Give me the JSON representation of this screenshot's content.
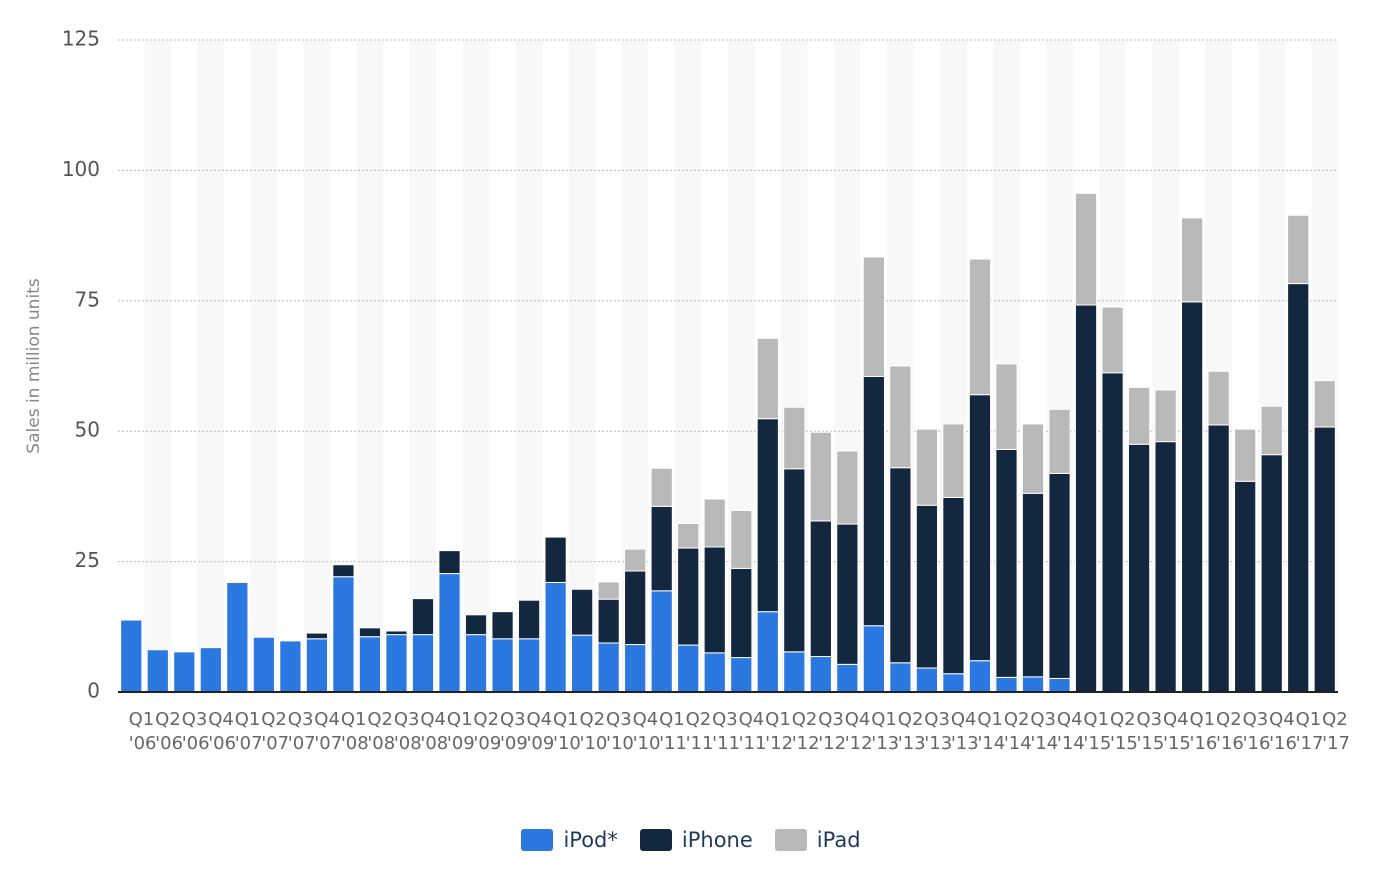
{
  "chart_data": {
    "type": "bar",
    "stacked": true,
    "ylabel": "Sales in million units",
    "categories": [
      "Q1 '06",
      "Q2 '06",
      "Q3 '06",
      "Q4 '06",
      "Q1 '07",
      "Q2 '07",
      "Q3 '07",
      "Q4 '07",
      "Q1 '08",
      "Q2 '08",
      "Q3 '08",
      "Q4 '08",
      "Q1 '09",
      "Q2 '09",
      "Q3 '09",
      "Q4 '09",
      "Q1 '10",
      "Q2 '10",
      "Q3 '10",
      "Q4 '10",
      "Q1 '11",
      "Q2 '11",
      "Q3 '11",
      "Q4 '11",
      "Q1 '12",
      "Q2 '12",
      "Q3 '12",
      "Q4 '12",
      "Q1 '13",
      "Q2 '13",
      "Q3 '13",
      "Q4 '13",
      "Q1 '14",
      "Q2 '14",
      "Q3 '14",
      "Q4 '14",
      "Q1 '15",
      "Q2 '15",
      "Q3 '15",
      "Q4 '15",
      "Q1 '16",
      "Q2 '16",
      "Q3 '16",
      "Q4 '16",
      "Q1 '17",
      "Q2 '17"
    ],
    "series": [
      {
        "name": "iPod*",
        "color": "#2a78e0",
        "values": [
          13.8,
          8.1,
          7.7,
          8.5,
          21.0,
          10.5,
          9.8,
          10.2,
          22.1,
          10.6,
          11.0,
          11.0,
          22.7,
          11.0,
          10.2,
          10.2,
          21.0,
          10.9,
          9.4,
          9.1,
          19.4,
          9.0,
          7.5,
          6.6,
          15.4,
          7.7,
          6.8,
          5.3,
          12.7,
          5.6,
          4.6,
          3.5,
          6.0,
          2.8,
          2.9,
          2.6,
          null,
          null,
          null,
          null,
          null,
          null,
          null,
          null,
          null,
          null
        ]
      },
      {
        "name": "iPhone",
        "color": "#13273f",
        "values": [
          null,
          null,
          null,
          null,
          null,
          null,
          null,
          1.1,
          2.3,
          1.7,
          0.7,
          6.9,
          4.4,
          3.8,
          5.2,
          7.4,
          8.7,
          8.8,
          8.4,
          14.1,
          16.2,
          18.6,
          20.3,
          17.1,
          37.0,
          35.1,
          26.0,
          26.9,
          47.8,
          37.4,
          31.2,
          33.8,
          51.0,
          43.7,
          35.2,
          39.3,
          74.2,
          61.2,
          47.5,
          48.0,
          74.8,
          51.2,
          40.4,
          45.5,
          78.3,
          50.8
        ]
      },
      {
        "name": "iPad",
        "color": "#b9b9b9",
        "values": [
          null,
          null,
          null,
          null,
          null,
          null,
          null,
          null,
          null,
          null,
          null,
          null,
          null,
          null,
          null,
          null,
          null,
          null,
          3.3,
          4.2,
          7.3,
          4.7,
          9.2,
          11.1,
          15.4,
          11.8,
          17.0,
          14.0,
          22.9,
          19.5,
          14.6,
          14.1,
          26.0,
          16.4,
          13.3,
          12.3,
          21.4,
          12.6,
          10.9,
          9.9,
          16.1,
          10.3,
          10.0,
          9.3,
          13.1,
          8.9
        ]
      }
    ],
    "ylim": [
      0,
      125
    ],
    "yticks": [
      0,
      25,
      50,
      75,
      100,
      125
    ],
    "grid": true,
    "legend": "bottom"
  }
}
